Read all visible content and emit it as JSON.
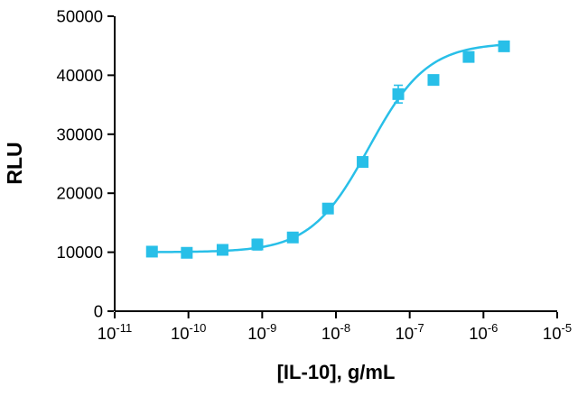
{
  "chart_data": {
    "type": "scatter",
    "title": "",
    "xlabel": "[IL-10], g/mL",
    "ylabel": "RLU",
    "x_scale": "log",
    "x_range_exponents": [
      -11,
      -5
    ],
    "x_tick_exponents": [
      -11,
      -10,
      -9,
      -8,
      -7,
      -6,
      -5
    ],
    "y_ticks": [
      0,
      10000,
      20000,
      30000,
      40000,
      50000
    ],
    "ylim": [
      0,
      50000
    ],
    "grid": false,
    "legend": "none",
    "marker_color": "#28BFE8",
    "axis_color": "#000000",
    "points": [
      {
        "x": 3.2e-11,
        "y": 10100,
        "err": 150
      },
      {
        "x": 9.5e-11,
        "y": 9900,
        "err": 200
      },
      {
        "x": 2.9e-10,
        "y": 10400,
        "err": 350
      },
      {
        "x": 8.6e-10,
        "y": 11300,
        "err": 900
      },
      {
        "x": 2.6e-09,
        "y": 12500,
        "err": 600
      },
      {
        "x": 7.8e-09,
        "y": 17400,
        "err": 250
      },
      {
        "x": 2.3e-08,
        "y": 25300,
        "err": 250
      },
      {
        "x": 7e-08,
        "y": 36800,
        "err": 1500
      },
      {
        "x": 2.1e-07,
        "y": 39200,
        "err": 600
      },
      {
        "x": 6.3e-07,
        "y": 43100,
        "err": 300
      },
      {
        "x": 1.9e-06,
        "y": 44900,
        "err": 250
      }
    ],
    "fit_curve": {
      "model": "4PL",
      "bottom": 10000,
      "top": 45500,
      "ec50": 2.8e-08,
      "hill": 1.1
    }
  }
}
